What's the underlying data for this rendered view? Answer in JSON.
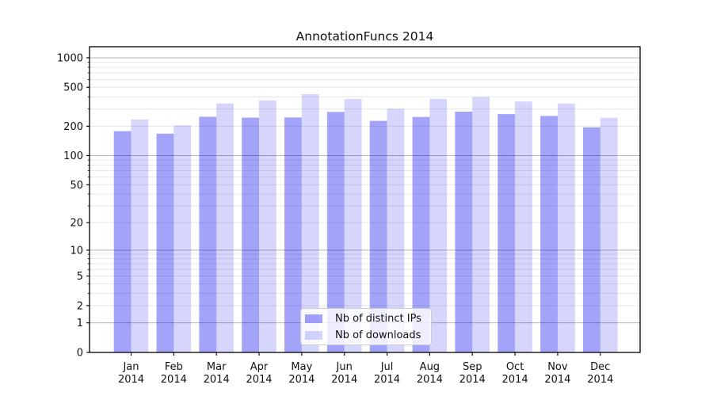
{
  "chart_data": {
    "type": "bar",
    "title": "AnnotationFuncs 2014",
    "categories": [
      "Jan 2014",
      "Feb 2014",
      "Mar 2014",
      "Apr 2014",
      "May 2014",
      "Jun 2014",
      "Jul 2014",
      "Aug 2014",
      "Sep 2014",
      "Oct 2014",
      "Nov 2014",
      "Dec 2014"
    ],
    "category_months": [
      "Jan",
      "Feb",
      "Mar",
      "Apr",
      "May",
      "Jun",
      "Jul",
      "Aug",
      "Sep",
      "Oct",
      "Nov",
      "Dec"
    ],
    "category_year": "2014",
    "series": [
      {
        "name": "Nb of distinct IPs",
        "color": "rgba(0,0,238,0.36)",
        "color_on_white": "#a3a3f2",
        "values": [
          178,
          168,
          250,
          245,
          246,
          280,
          227,
          249,
          282,
          266,
          255,
          195
        ]
      },
      {
        "name": "Nb of downloads",
        "color": "rgba(0,0,238,0.16)",
        "color_on_white": "#d9d9f8",
        "values": [
          235,
          204,
          342,
          368,
          425,
          380,
          302,
          382,
          397,
          358,
          342,
          244
        ]
      }
    ],
    "yscale": "log1p",
    "ylim": [
      0,
      1300
    ],
    "yticks": [
      0,
      1,
      2,
      5,
      10,
      20,
      50,
      100,
      200,
      500,
      1000
    ],
    "ytick_labels": [
      "0",
      "1",
      "2",
      "5",
      "10",
      "20",
      "50",
      "100",
      "200",
      "500",
      "1000"
    ],
    "grid": "both",
    "grid_major": [
      1,
      10,
      100,
      1000
    ],
    "grid_minor": [
      2,
      3,
      4,
      5,
      6,
      7,
      8,
      9,
      20,
      30,
      40,
      50,
      60,
      70,
      80,
      90,
      200,
      300,
      400,
      500,
      600,
      700,
      800,
      900
    ],
    "legend": {
      "position": "lower center"
    },
    "colors": {
      "axis": "#000000",
      "grid_major": "#b3b3b3",
      "grid_minor": "#e7e7e7",
      "background": "#ffffff"
    }
  }
}
